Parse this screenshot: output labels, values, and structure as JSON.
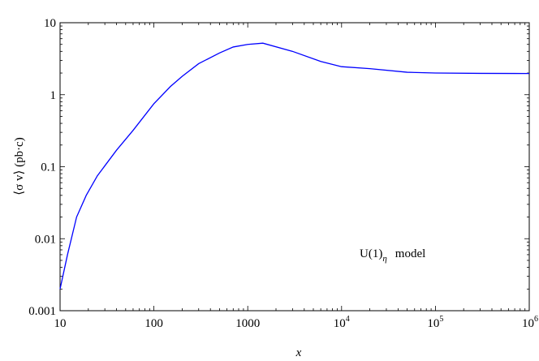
{
  "chart_data": {
    "type": "line",
    "xscale": "log",
    "yscale": "log",
    "xlim": [
      10,
      1000000
    ],
    "ylim": [
      0.001,
      10
    ],
    "xlabel": "x",
    "ylabel": "⟨σ v⟩  (pb·c)",
    "annotation": {
      "base": "U(1)",
      "subscript": "η",
      "suffix": "model"
    },
    "grid": false,
    "legend": "none",
    "line_color": "#0000ff",
    "x_ticks": [
      {
        "value": 10,
        "base": "10",
        "exp": ""
      },
      {
        "value": 100,
        "base": "100",
        "exp": ""
      },
      {
        "value": 1000,
        "base": "1000",
        "exp": ""
      },
      {
        "value": 10000,
        "base": "10",
        "exp": "4"
      },
      {
        "value": 100000,
        "base": "10",
        "exp": "5"
      },
      {
        "value": 1000000,
        "base": "10",
        "exp": "6"
      }
    ],
    "y_ticks": [
      {
        "value": 0.001,
        "label": "0.001"
      },
      {
        "value": 0.01,
        "label": "0.01"
      },
      {
        "value": 0.1,
        "label": "0.1"
      },
      {
        "value": 1,
        "label": "1"
      },
      {
        "value": 10,
        "label": "10"
      }
    ],
    "series": [
      {
        "x": [
          10,
          12,
          15,
          19,
          25,
          40,
          60,
          100,
          150,
          200,
          300,
          500,
          700,
          1000,
          1450,
          3000,
          6000,
          10000,
          20000,
          50000,
          100000,
          300000,
          1000000
        ],
        "y": [
          0.002,
          0.006,
          0.02,
          0.04,
          0.075,
          0.17,
          0.32,
          0.75,
          1.3,
          1.8,
          2.7,
          3.8,
          4.6,
          5.0,
          5.2,
          4.0,
          2.9,
          2.45,
          2.3,
          2.05,
          2.0,
          1.98,
          1.97
        ]
      }
    ]
  }
}
